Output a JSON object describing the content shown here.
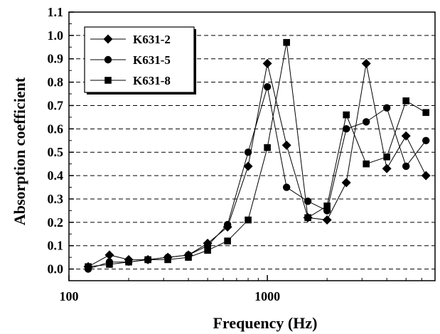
{
  "chart_data": {
    "type": "line",
    "xlabel": "Frequency (Hz)",
    "ylabel": "Absorption coefficient",
    "xscale": "log",
    "xlim": [
      100,
      7000
    ],
    "ylim": [
      -0.05,
      1.1
    ],
    "xticks": [
      100,
      1000
    ],
    "xtick_labels": [
      "100",
      "1000"
    ],
    "yticks": [
      0.0,
      0.1,
      0.2,
      0.3,
      0.4,
      0.5,
      0.6,
      0.7,
      0.8,
      0.9,
      1.0,
      1.1
    ],
    "ytick_labels": [
      "0.0",
      "0.1",
      "0.2",
      "0.3",
      "0.4",
      "0.5",
      "0.6",
      "0.7",
      "0.8",
      "0.9",
      "1.0",
      "1.1"
    ],
    "grid": "horizontal dashed",
    "legend_position": "top-left",
    "series": [
      {
        "name": "K631-2",
        "marker": "diamond",
        "x": [
          125,
          160,
          200,
          250,
          315,
          400,
          500,
          630,
          800,
          1000,
          1250,
          1600,
          2000,
          2500,
          3150,
          4000,
          5000,
          6300
        ],
        "y": [
          0.01,
          0.06,
          0.04,
          0.04,
          0.05,
          0.06,
          0.11,
          0.18,
          0.44,
          0.88,
          0.53,
          0.22,
          0.21,
          0.37,
          0.88,
          0.43,
          0.57,
          0.4
        ]
      },
      {
        "name": "K631-5",
        "marker": "circle",
        "x": [
          125,
          160,
          200,
          250,
          315,
          400,
          500,
          630,
          800,
          1000,
          1250,
          1600,
          2000,
          2500,
          3150,
          4000,
          5000,
          6300
        ],
        "y": [
          0.0,
          0.03,
          0.03,
          0.04,
          0.05,
          0.06,
          0.1,
          0.19,
          0.5,
          0.78,
          0.35,
          0.29,
          0.25,
          0.6,
          0.63,
          0.69,
          0.44,
          0.55
        ]
      },
      {
        "name": "K631-8",
        "marker": "square",
        "x": [
          125,
          160,
          200,
          250,
          315,
          400,
          500,
          630,
          800,
          1000,
          1250,
          1600,
          2000,
          2500,
          3150,
          4000,
          5000,
          6300
        ],
        "y": [
          0.01,
          0.02,
          0.03,
          0.04,
          0.04,
          0.05,
          0.08,
          0.12,
          0.21,
          0.52,
          0.97,
          0.22,
          0.27,
          0.66,
          0.45,
          0.48,
          0.72,
          0.67
        ]
      }
    ]
  }
}
